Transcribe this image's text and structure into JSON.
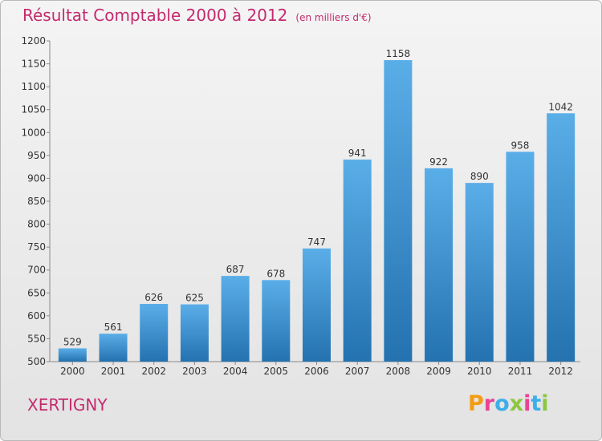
{
  "header": {
    "title": "Résultat Comptable 2000 à 2012",
    "subtitle": "(en milliers d'€)"
  },
  "footer": {
    "place": "XERTIGNY",
    "logo_letters": [
      "P",
      "r",
      "o",
      "x",
      "i",
      "t",
      "i"
    ]
  },
  "colors": {
    "title": "#c52a6e",
    "bar_top": "#5aaee8",
    "bar_bottom": "#2472b0",
    "logo": [
      "#f39c12",
      "#e84393",
      "#3daee9",
      "#8cc63f",
      "#e84393",
      "#3daee9",
      "#8cc63f"
    ]
  },
  "chart_data": {
    "type": "bar",
    "title": "Résultat Comptable 2000 à 2012",
    "subtitle": "(en milliers d'€)",
    "xlabel": "",
    "ylabel": "",
    "ylim": [
      500,
      1200
    ],
    "ytick_step": 50,
    "grid": false,
    "categories": [
      "2000",
      "2001",
      "2002",
      "2003",
      "2004",
      "2005",
      "2006",
      "2007",
      "2008",
      "2009",
      "2010",
      "2011",
      "2012"
    ],
    "values": [
      529,
      561,
      626,
      625,
      687,
      678,
      747,
      941,
      1158,
      922,
      890,
      958,
      1042
    ]
  }
}
